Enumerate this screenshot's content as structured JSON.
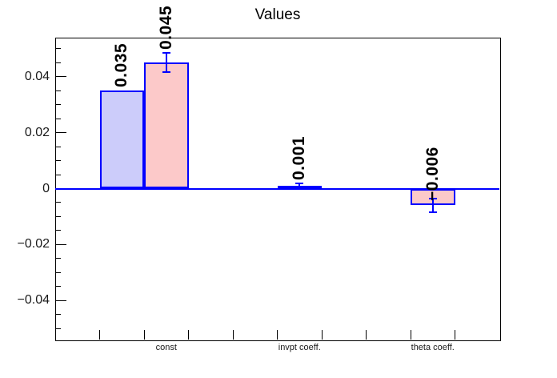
{
  "chart_data": {
    "type": "bar",
    "title": "Values",
    "categories": [
      "const",
      "invpt coeff.",
      "theta coeff."
    ],
    "series": [
      {
        "name": "series-blue",
        "fill": "#ccccfa",
        "values": [
          0.035,
          0,
          0
        ],
        "errors": [
          0,
          0,
          0
        ],
        "value_labels": [
          "0.035",
          "",
          ""
        ]
      },
      {
        "name": "series-pink",
        "fill": "#fcc9c9",
        "values": [
          0.045,
          0.001,
          -0.006
        ],
        "errors": [
          0.0035,
          0.001,
          0.0025
        ],
        "value_labels": [
          "0.045",
          "0.001",
          "−0.006"
        ]
      }
    ],
    "y_axis": {
      "major_ticks": [
        -0.04,
        -0.02,
        0,
        0.02,
        0.04
      ],
      "major_tick_labels": [
        "−0.04",
        "−0.02",
        "0",
        "0.02",
        "0.04"
      ],
      "minor_step": 0.005,
      "ylim": [
        -0.0539,
        0.0539
      ]
    },
    "x_axis": {
      "n_bins": 10,
      "label_bins": [
        3,
        6,
        9
      ]
    },
    "colors": {
      "bar_border": "#0000ff",
      "zero_line": "#0000ff",
      "error_bar": "#0000ff",
      "frame": "#000000",
      "blue_fill": "#ccccfa",
      "pink_fill": "#fcc9c9"
    },
    "legend": "none",
    "grid": false
  }
}
